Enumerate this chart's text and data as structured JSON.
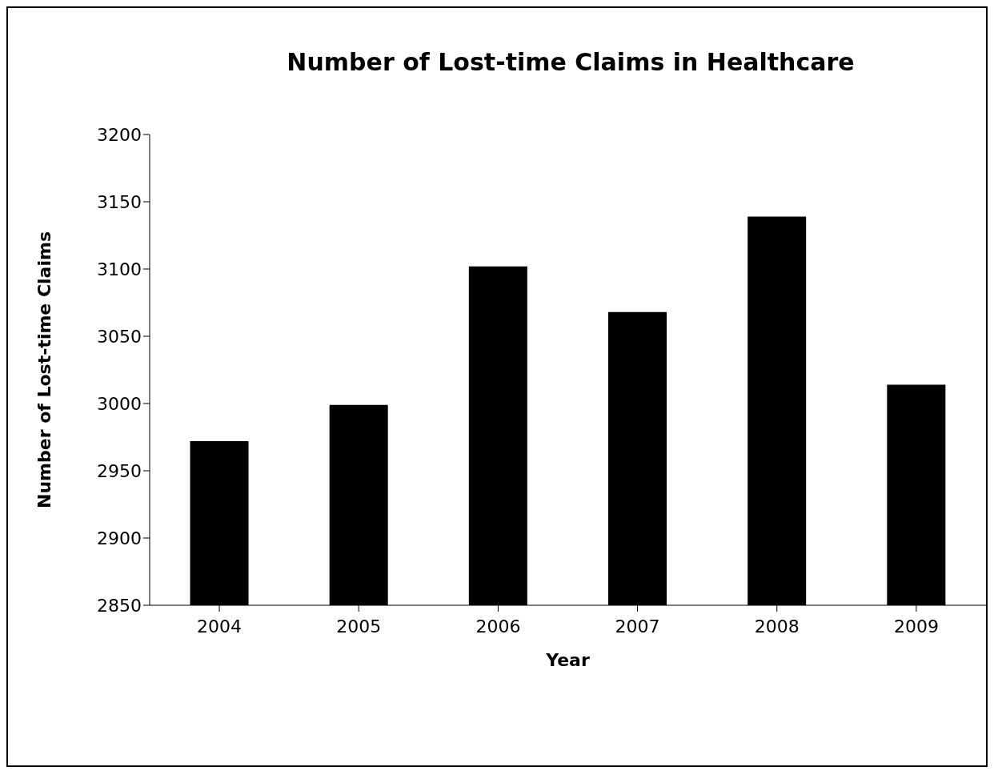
{
  "chart_data": {
    "type": "bar",
    "title": "Number of Lost-time Claims in Healthcare",
    "xlabel": "Year",
    "ylabel": "Number of Lost-time Claims",
    "categories": [
      "2004",
      "2005",
      "2006",
      "2007",
      "2008",
      "2009"
    ],
    "values": [
      2972,
      2999,
      3102,
      3068,
      3139,
      3014
    ],
    "color": "#000000",
    "ylim": [
      2850,
      3200
    ],
    "yticks": [
      2850,
      2900,
      2950,
      3000,
      3050,
      3100,
      3150,
      3200
    ]
  }
}
